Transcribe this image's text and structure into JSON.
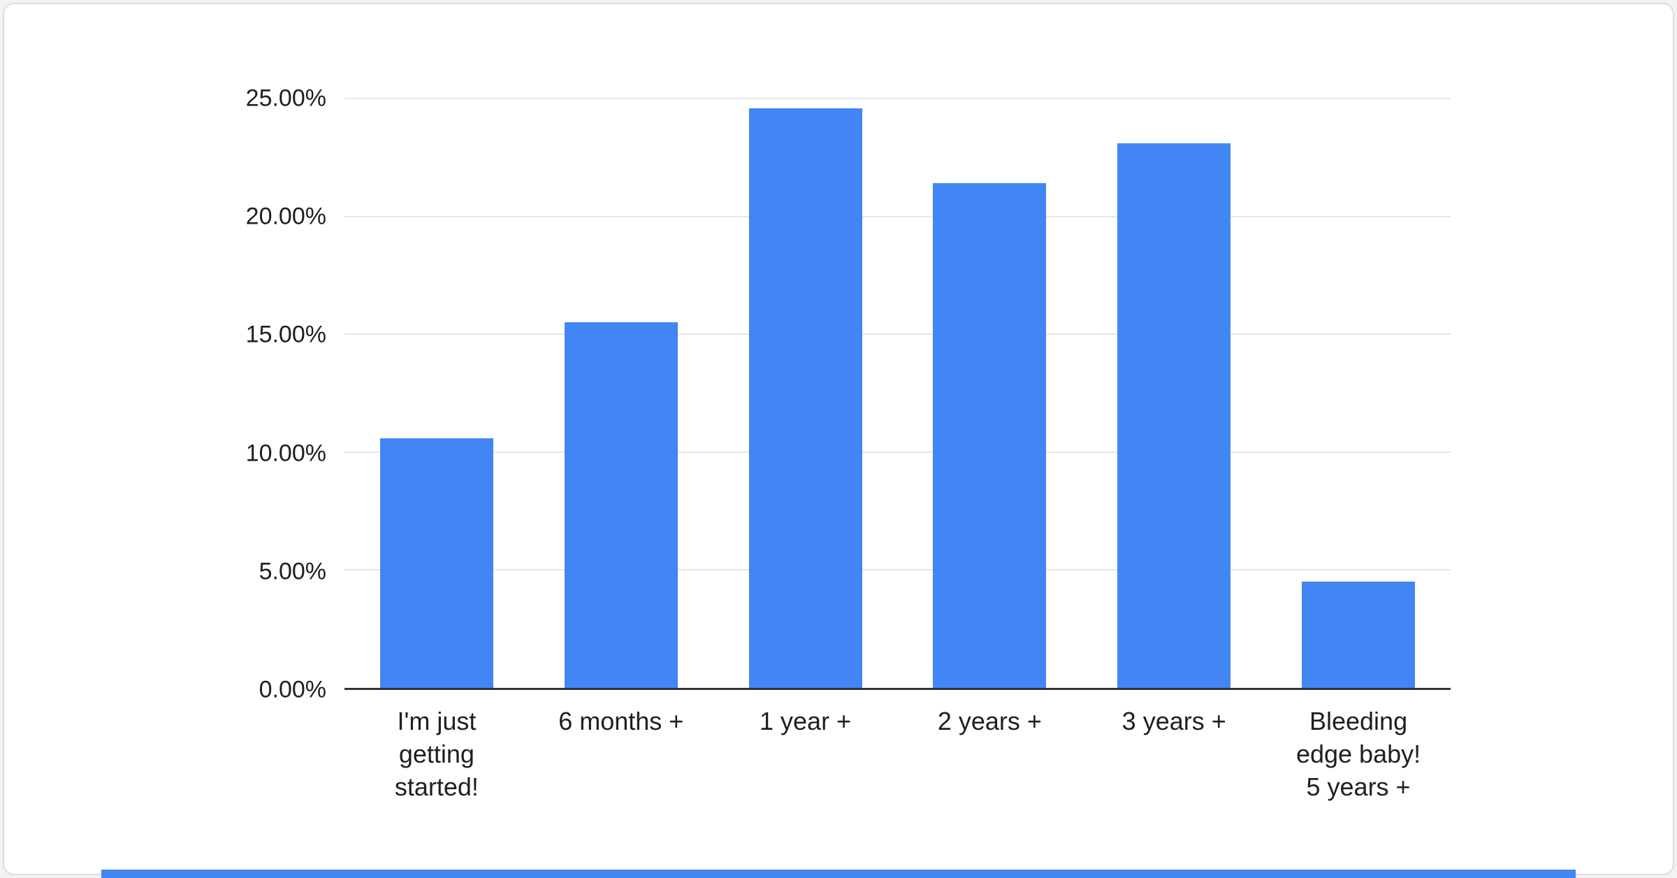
{
  "page": {
    "background": "#f1f3f4",
    "card_background": "#ffffff",
    "bottom_strip_color": "#4285f4"
  },
  "chart_data": {
    "type": "bar",
    "title": "",
    "xlabel": "",
    "ylabel": "",
    "bar_color": "#4285f4",
    "grid": true,
    "legend": "none",
    "ylim": [
      0,
      25
    ],
    "ytick_step": 5,
    "yticks": [
      {
        "value": 0,
        "label": "0.00%"
      },
      {
        "value": 5,
        "label": "5.00%"
      },
      {
        "value": 10,
        "label": "10.00%"
      },
      {
        "value": 15,
        "label": "15.00%"
      },
      {
        "value": 20,
        "label": "20.00%"
      },
      {
        "value": 25,
        "label": "25.00%"
      }
    ],
    "categories": [
      "I'm just getting started!",
      "6 months +",
      "1 year +",
      "2 years +",
      "3 years +",
      "Bleeding edge baby! 5 years +"
    ],
    "categories_lines": [
      [
        "I'm just",
        "getting",
        "started!"
      ],
      [
        "6 months +"
      ],
      [
        "1 year +"
      ],
      [
        "2 years +"
      ],
      [
        "3 years +"
      ],
      [
        "Bleeding",
        "edge baby!",
        "5 years +"
      ]
    ],
    "values": [
      10.6,
      15.5,
      24.6,
      21.4,
      23.1,
      4.5
    ],
    "value_format": "percent"
  }
}
